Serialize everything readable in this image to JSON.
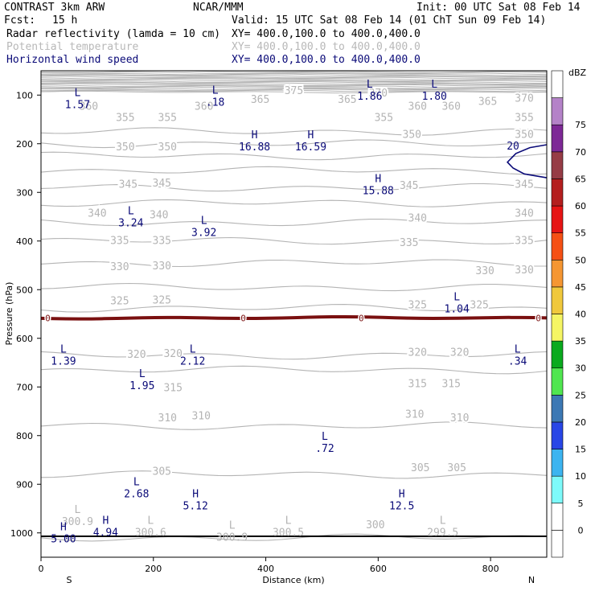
{
  "header": {
    "left1": "CONTRAST  3km ARW",
    "center1": "NCAR/MMM",
    "right1": "Init: 00 UTC Sat 08 Feb 14",
    "fcst_label": "Fcst:",
    "fcst_value": "15 h",
    "valid": "Valid: 15 UTC Sat 08 Feb 14 (01 ChT Sun 09 Feb 14)",
    "field1": "Radar reflectivity (lamda = 10 cm)",
    "field1_xy": "XY= 400.0,100.0 to 400.0,400.0",
    "field2": "Potential temperature",
    "field2_xy": "XY= 400.0,100.0 to 400.0,400.0",
    "field3": "Horizontal wind speed",
    "field3_xy": "XY= 400.0,100.0 to 400.0,400.0"
  },
  "colors": {
    "theta": "#b4b4b4",
    "wind": "#0a0a78",
    "freezing": "#7a1010",
    "ground": "#000000"
  },
  "chart_data": {
    "type": "contour",
    "title": "",
    "xlabel": "Distance (km)",
    "ylabel": "Pressure (hPa)",
    "xlim": [
      0,
      900
    ],
    "ylim": [
      1050,
      50
    ],
    "x_ticks": [
      0,
      200,
      400,
      600,
      800
    ],
    "y_ticks": [
      100,
      200,
      300,
      400,
      500,
      600,
      700,
      800,
      900,
      1000
    ],
    "x_end_labels": {
      "left": "S",
      "right": "N"
    },
    "colorbar": {
      "unit": "dBZ",
      "levels": [
        0,
        5,
        10,
        15,
        20,
        25,
        30,
        35,
        40,
        45,
        50,
        55,
        60,
        65,
        70,
        75
      ],
      "colors": [
        "#ffffff",
        "#ffffff",
        "#7dfafa",
        "#3cb4f0",
        "#2846e6",
        "#3c78b4",
        "#50e650",
        "#0aaa1e",
        "#f5f564",
        "#f0c83c",
        "#f59632",
        "#f55014",
        "#e61414",
        "#b41e1e",
        "#963c46",
        "#7d2896",
        "#b482c8",
        "#ffffff"
      ]
    },
    "theta_contours": [
      {
        "value": 300,
        "p": 1010
      },
      {
        "value": 305,
        "p": 880
      },
      {
        "value": 310,
        "p": 780
      },
      {
        "value": 315,
        "p": 665
      },
      {
        "value": 320,
        "p": 635
      },
      {
        "value": 325,
        "p": 538
      },
      {
        "value": 330,
        "p": 495
      },
      {
        "value": 335,
        "p": 445
      },
      {
        "value": 340,
        "p": 400
      },
      {
        "value": 345,
        "p": 362
      },
      {
        "value": 350,
        "p": 322
      },
      {
        "value": 355,
        "p": 290
      },
      {
        "value": 360,
        "p": 255
      },
      {
        "value": 365,
        "p": 225
      },
      {
        "value": 370,
        "p": 200
      },
      {
        "value": 375,
        "p": 175
      }
    ],
    "theta_labels": [
      {
        "text": "375",
        "x": 450,
        "p": 90
      },
      {
        "text": "365",
        "x": 390,
        "p": 108
      },
      {
        "text": "365",
        "x": 545,
        "p": 108
      },
      {
        "text": "370",
        "x": 600,
        "p": 95
      },
      {
        "text": "365",
        "x": 795,
        "p": 112
      },
      {
        "text": "370",
        "x": 860,
        "p": 105
      },
      {
        "text": "360",
        "x": 85,
        "p": 122
      },
      {
        "text": "360",
        "x": 290,
        "p": 122
      },
      {
        "text": "360",
        "x": 670,
        "p": 122
      },
      {
        "text": "360",
        "x": 730,
        "p": 122
      },
      {
        "text": "355",
        "x": 150,
        "p": 145
      },
      {
        "text": "355",
        "x": 225,
        "p": 145
      },
      {
        "text": "355",
        "x": 610,
        "p": 145
      },
      {
        "text": "355",
        "x": 860,
        "p": 145
      },
      {
        "text": "350",
        "x": 150,
        "p": 205
      },
      {
        "text": "350",
        "x": 225,
        "p": 205
      },
      {
        "text": "350",
        "x": 660,
        "p": 180
      },
      {
        "text": "350",
        "x": 860,
        "p": 180
      },
      {
        "text": "345",
        "x": 155,
        "p": 282
      },
      {
        "text": "345",
        "x": 215,
        "p": 280
      },
      {
        "text": "345",
        "x": 655,
        "p": 285
      },
      {
        "text": "345",
        "x": 860,
        "p": 282
      },
      {
        "text": "340",
        "x": 100,
        "p": 342
      },
      {
        "text": "340",
        "x": 210,
        "p": 345
      },
      {
        "text": "340",
        "x": 670,
        "p": 352
      },
      {
        "text": "340",
        "x": 860,
        "p": 342
      },
      {
        "text": "335",
        "x": 140,
        "p": 398
      },
      {
        "text": "335",
        "x": 215,
        "p": 398
      },
      {
        "text": "335",
        "x": 655,
        "p": 402
      },
      {
        "text": "335",
        "x": 860,
        "p": 398
      },
      {
        "text": "330",
        "x": 140,
        "p": 452
      },
      {
        "text": "330",
        "x": 215,
        "p": 450
      },
      {
        "text": "330",
        "x": 790,
        "p": 460
      },
      {
        "text": "330",
        "x": 860,
        "p": 458
      },
      {
        "text": "325",
        "x": 140,
        "p": 522
      },
      {
        "text": "325",
        "x": 215,
        "p": 520
      },
      {
        "text": "325",
        "x": 670,
        "p": 530
      },
      {
        "text": "325",
        "x": 780,
        "p": 530
      },
      {
        "text": "320",
        "x": 170,
        "p": 632
      },
      {
        "text": "320",
        "x": 235,
        "p": 630
      },
      {
        "text": "320",
        "x": 670,
        "p": 628
      },
      {
        "text": "320",
        "x": 745,
        "p": 628
      },
      {
        "text": "315",
        "x": 235,
        "p": 700
      },
      {
        "text": "315",
        "x": 670,
        "p": 692
      },
      {
        "text": "315",
        "x": 730,
        "p": 692
      },
      {
        "text": "310",
        "x": 225,
        "p": 762
      },
      {
        "text": "310",
        "x": 285,
        "p": 758
      },
      {
        "text": "310",
        "x": 665,
        "p": 755
      },
      {
        "text": "310",
        "x": 745,
        "p": 762
      },
      {
        "text": "305",
        "x": 215,
        "p": 872
      },
      {
        "text": "305",
        "x": 675,
        "p": 865
      },
      {
        "text": "305",
        "x": 740,
        "p": 865
      },
      {
        "text": "300",
        "x": 595,
        "p": 982
      }
    ],
    "freezing_level": {
      "value": 0,
      "p": 558,
      "labels_x": [
        12,
        360,
        570,
        885
      ]
    },
    "wind_contour": {
      "value": 20,
      "label": "20",
      "points": [
        [
          900,
          202
        ],
        [
          870,
          208
        ],
        [
          845,
          220
        ],
        [
          830,
          238
        ],
        [
          840,
          250
        ],
        [
          860,
          262
        ],
        [
          900,
          270
        ]
      ]
    },
    "extrema": [
      {
        "type": "L",
        "value": "1.57",
        "x": 65,
        "p": 105
      },
      {
        "type": "L",
        "value": ".18",
        "x": 310,
        "p": 100
      },
      {
        "type": "L",
        "value": "1.86",
        "x": 585,
        "p": 88
      },
      {
        "type": "L",
        "value": "1.80",
        "x": 700,
        "p": 88
      },
      {
        "type": "H",
        "value": "16.88",
        "x": 380,
        "p": 192
      },
      {
        "type": "H",
        "value": "16.59",
        "x": 480,
        "p": 192
      },
      {
        "type": "H",
        "value": "15.88",
        "x": 600,
        "p": 282
      },
      {
        "type": "L",
        "value": "3.24",
        "x": 160,
        "p": 348
      },
      {
        "type": "L",
        "value": "3.92",
        "x": 290,
        "p": 368
      },
      {
        "type": "L",
        "value": "1.04",
        "x": 740,
        "p": 525
      },
      {
        "type": "L",
        "value": "1.39",
        "x": 40,
        "p": 633
      },
      {
        "type": "L",
        "value": "2.12",
        "x": 270,
        "p": 633
      },
      {
        "type": "L",
        "value": ".34",
        "x": 848,
        "p": 633
      },
      {
        "type": "L",
        "value": "1.95",
        "x": 180,
        "p": 683
      },
      {
        "type": "L",
        "value": ".72",
        "x": 505,
        "p": 812
      },
      {
        "type": "L",
        "value": "2.68",
        "x": 170,
        "p": 905
      },
      {
        "type": "H",
        "value": "5.12",
        "x": 275,
        "p": 930
      },
      {
        "type": "H",
        "value": "12.5",
        "x": 642,
        "p": 930
      }
    ],
    "theta_extrema": [
      {
        "type": "L",
        "value": "300.9",
        "x": 65,
        "p": 962
      },
      {
        "type": "L",
        "value": "300.6",
        "x": 195,
        "p": 985
      },
      {
        "type": "L",
        "value": "300.9",
        "x": 340,
        "p": 995
      },
      {
        "type": "L",
        "value": "300.5",
        "x": 440,
        "p": 985
      },
      {
        "type": "L",
        "value": "299.5",
        "x": 715,
        "p": 985
      }
    ],
    "surface_extrema": [
      {
        "type": "H",
        "value": "5.00",
        "x": 40,
        "p": 998
      },
      {
        "type": "H",
        "value": "4.94",
        "x": 115,
        "p": 985
      }
    ]
  }
}
